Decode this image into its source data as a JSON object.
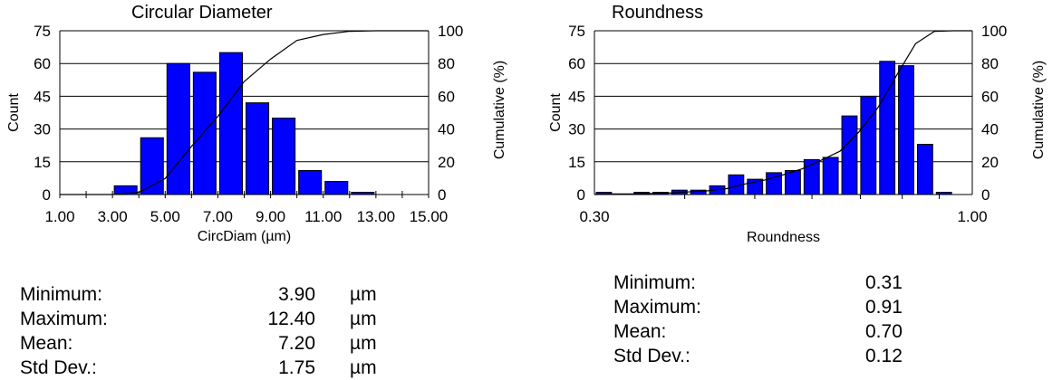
{
  "chart_data": [
    {
      "type": "bar",
      "title": "Circular Diameter",
      "xlabel": "CircDiam (µm)",
      "ylabel": "Count",
      "y2label": "Cumulative (%)",
      "xlim": [
        1,
        15
      ],
      "ylim": [
        0,
        75
      ],
      "y2lim": [
        0,
        100
      ],
      "x_scale": "linear",
      "xticks": [
        "1.00",
        "3.00",
        "5.00",
        "7.00",
        "9.00",
        "11.00",
        "13.00",
        "15.00"
      ],
      "yticks": [
        "0",
        "15",
        "30",
        "45",
        "60",
        "75"
      ],
      "y2ticks": [
        "0",
        "20",
        "40",
        "60",
        "80",
        "100"
      ],
      "bin_edges": [
        3,
        4,
        5,
        6,
        7,
        8,
        9,
        10,
        11,
        12,
        13
      ],
      "values": [
        4,
        26,
        60,
        56,
        65,
        42,
        35,
        11,
        6,
        1
      ],
      "cumulative_line": true,
      "grid": "horizontal",
      "bar_color": "#0000ff"
    },
    {
      "type": "bar",
      "title": "Roundness",
      "xlabel": "Roundness",
      "ylabel": "Count",
      "y2label": "Cumulative (%)",
      "xlim": [
        0.3,
        1.0
      ],
      "ylim": [
        0,
        75
      ],
      "y2lim": [
        0,
        100
      ],
      "x_scale": "log",
      "xticks": [
        "0.30",
        "1.00"
      ],
      "yticks": [
        "0",
        "15",
        "30",
        "45",
        "60",
        "75"
      ],
      "y2ticks": [
        "0",
        "20",
        "40",
        "60",
        "80",
        "100"
      ],
      "bins": 20,
      "values": [
        1,
        0,
        1,
        1,
        2,
        2,
        4,
        9,
        7,
        10,
        11,
        16,
        17,
        36,
        45,
        61,
        59,
        23,
        1,
        0
      ],
      "cumulative_line": true,
      "grid": "horizontal",
      "bar_color": "#0000ff"
    }
  ],
  "stats_left": [
    {
      "label": "Minimum:",
      "value": "3.90",
      "unit": "µm"
    },
    {
      "label": "Maximum:",
      "value": "12.40",
      "unit": "µm"
    },
    {
      "label": "Mean:",
      "value": "7.20",
      "unit": "µm"
    },
    {
      "label": "Std Dev.:",
      "value": "1.75",
      "unit": "µm"
    }
  ],
  "stats_right": [
    {
      "label": "Minimum:",
      "value": "0.31"
    },
    {
      "label": "Maximum:",
      "value": "0.91"
    },
    {
      "label": "Mean:",
      "value": "0.70"
    },
    {
      "label": "Std Dev.:",
      "value": "0.12"
    }
  ]
}
